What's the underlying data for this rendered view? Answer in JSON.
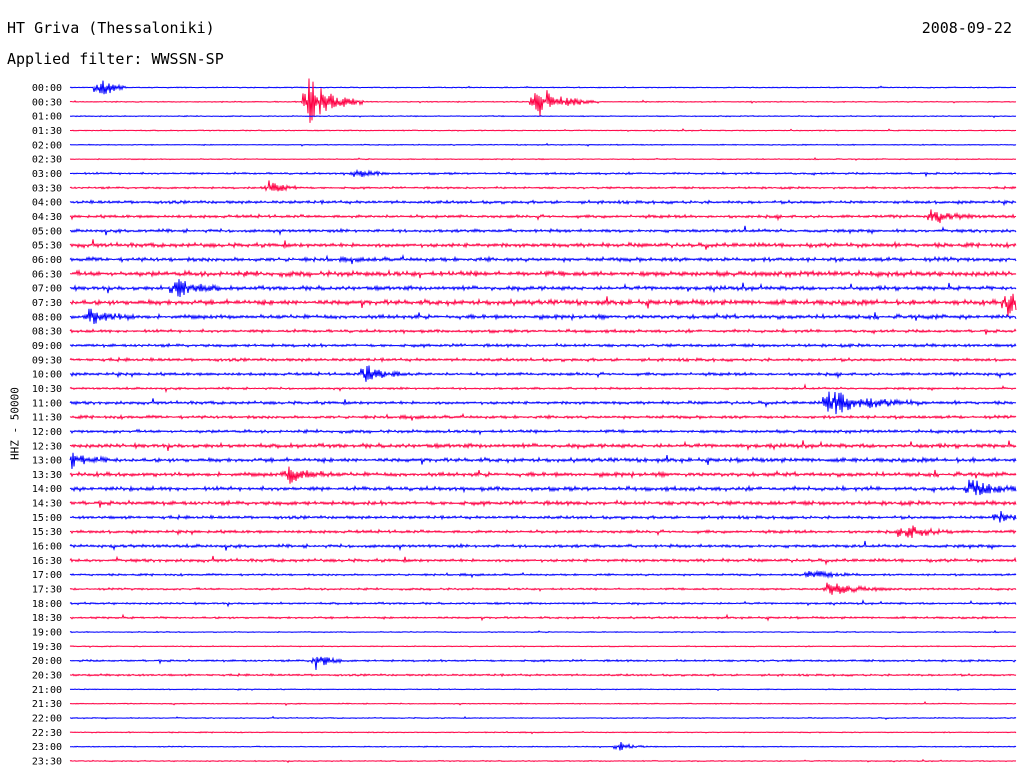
{
  "header": {
    "station": "HT Griva (Thessaloniki)",
    "date": "2008-09-22",
    "filter": "Applied filter: WWSSN-SP"
  },
  "chart_data": {
    "type": "line",
    "title": "HT Griva (Thessaloniki)",
    "ylabel": "HHZ - 50000",
    "colors": [
      "#0000ff",
      "#ff0044"
    ],
    "categories": [
      "00:00",
      "00:30",
      "01:00",
      "01:30",
      "02:00",
      "02:30",
      "03:00",
      "03:30",
      "04:00",
      "04:30",
      "05:00",
      "05:30",
      "06:00",
      "06:30",
      "07:00",
      "07:30",
      "08:00",
      "08:30",
      "09:00",
      "09:30",
      "10:00",
      "10:30",
      "11:00",
      "11:30",
      "12:00",
      "12:30",
      "13:00",
      "13:30",
      "14:00",
      "14:30",
      "15:00",
      "15:30",
      "16:00",
      "16:30",
      "17:00",
      "17:30",
      "18:00",
      "18:30",
      "19:00",
      "19:30",
      "20:00",
      "20:30",
      "21:00",
      "21:30",
      "22:00",
      "22:30",
      "23:00",
      "23:30"
    ],
    "noise_levels": [
      0.5,
      0.5,
      0.5,
      0.5,
      0.5,
      0.5,
      1,
      1,
      1.5,
      1.5,
      1.5,
      2,
      2,
      2.5,
      2,
      2.5,
      2,
      1.5,
      1.5,
      1.5,
      1.5,
      1,
      1.5,
      1.5,
      1.5,
      2,
      2,
      2,
      2,
      2,
      1.5,
      1.5,
      1.5,
      1.5,
      1,
      1,
      1,
      1,
      0.5,
      0.5,
      1,
      1,
      0.5,
      0.5,
      0.5,
      0.5,
      0.5,
      0.5
    ],
    "events": [
      {
        "trace": 0,
        "x": 0.03,
        "amp": 16,
        "dur": 0.03
      },
      {
        "trace": 1,
        "x": 0.25,
        "amp": 30,
        "dur": 0.06
      },
      {
        "trace": 1,
        "x": 0.49,
        "amp": 20,
        "dur": 0.07
      },
      {
        "trace": 6,
        "x": 0.3,
        "amp": 4,
        "dur": 0.05
      },
      {
        "trace": 7,
        "x": 0.21,
        "amp": 8,
        "dur": 0.04
      },
      {
        "trace": 9,
        "x": 0.91,
        "amp": 7,
        "dur": 0.05
      },
      {
        "trace": 14,
        "x": 0.11,
        "amp": 12,
        "dur": 0.05
      },
      {
        "trace": 15,
        "x": 0.99,
        "amp": 14,
        "dur": 0.06
      },
      {
        "trace": 16,
        "x": 0.02,
        "amp": 8,
        "dur": 0.06
      },
      {
        "trace": 20,
        "x": 0.31,
        "amp": 12,
        "dur": 0.05
      },
      {
        "trace": 22,
        "x": 0.8,
        "amp": 14,
        "dur": 0.1
      },
      {
        "trace": 26,
        "x": 0.0,
        "amp": 8,
        "dur": 0.05
      },
      {
        "trace": 27,
        "x": 0.23,
        "amp": 10,
        "dur": 0.05
      },
      {
        "trace": 28,
        "x": 0.95,
        "amp": 10,
        "dur": 0.07
      },
      {
        "trace": 30,
        "x": 0.98,
        "amp": 10,
        "dur": 0.03
      },
      {
        "trace": 31,
        "x": 0.88,
        "amp": 9,
        "dur": 0.06
      },
      {
        "trace": 34,
        "x": 0.78,
        "amp": 6,
        "dur": 0.06
      },
      {
        "trace": 35,
        "x": 0.8,
        "amp": 7,
        "dur": 0.07
      },
      {
        "trace": 40,
        "x": 0.26,
        "amp": 10,
        "dur": 0.03
      },
      {
        "trace": 46,
        "x": 0.58,
        "amp": 6,
        "dur": 0.03
      }
    ]
  }
}
